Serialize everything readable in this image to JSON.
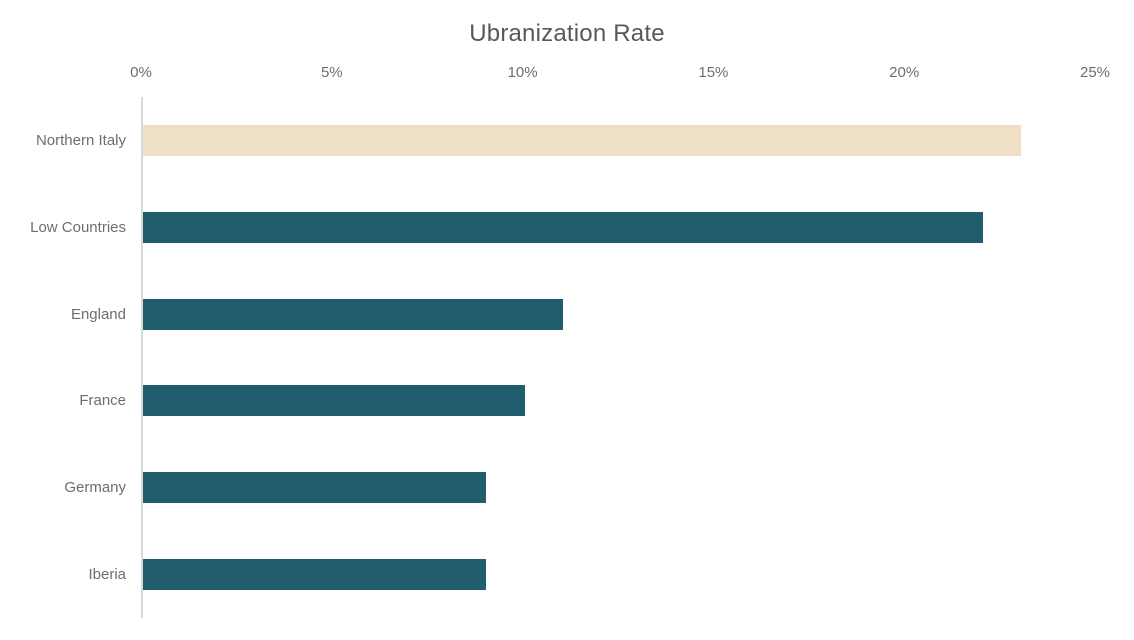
{
  "chart_data": {
    "type": "bar",
    "orientation": "horizontal",
    "title": "Ubranization Rate",
    "categories": [
      "Northern Italy",
      "Low Countries",
      "England",
      "France",
      "Germany",
      "Iberia"
    ],
    "values": [
      23,
      22,
      11,
      10,
      9,
      9
    ],
    "value_unit": "%",
    "xlabel": "",
    "ylabel": "",
    "xlim": [
      0,
      25
    ],
    "x_ticks": [
      "0%",
      "5%",
      "10%",
      "15%",
      "20%",
      "25%"
    ],
    "x_tick_values": [
      0,
      5,
      10,
      15,
      20,
      25
    ],
    "bar_colors": [
      "#efe0c5",
      "#215e6d",
      "#215e6d",
      "#215e6d",
      "#215e6d",
      "#215e6d"
    ],
    "highlight_color": "#efe0c5",
    "default_bar_color": "#215e6d",
    "axis_line_color": "#d9d9d9",
    "title_color": "#595959",
    "label_color": "#6e6e6e",
    "grid": false,
    "legend": false,
    "background": "#ffffff"
  }
}
